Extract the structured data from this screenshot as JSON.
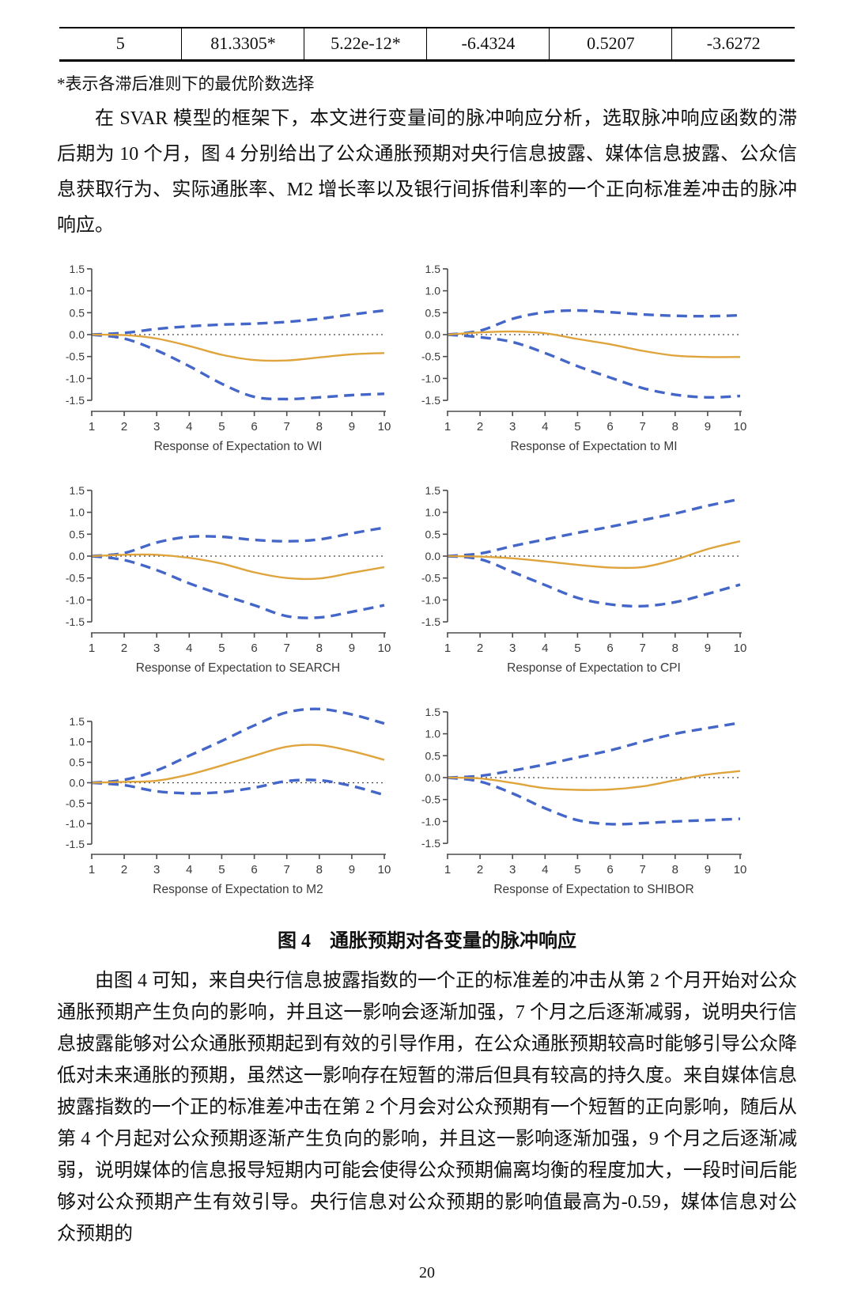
{
  "page": {
    "number": "20"
  },
  "table": {
    "row": [
      "5",
      "81.3305*",
      "5.22e-12*",
      "-6.4324",
      "0.5207",
      "-3.6272"
    ],
    "footnote": "*表示各滞后准则下的最优阶数选择"
  },
  "paragraphs": {
    "p1": "在 SVAR 模型的框架下，本文进行变量间的脉冲响应分析，选取脉冲响应函数的滞后期为 10 个月，图 4 分别给出了公众通胀预期对央行信息披露、媒体信息披露、公众信息获取行为、实际通胀率、M2 增长率以及银行间拆借利率的一个正向标准差冲击的脉冲响应。",
    "p2": "由图 4 可知，来自央行信息披露指数的一个正的标准差的冲击从第 2 个月开始对公众通胀预期产生负向的影响，并且这一影响会逐渐加强，7 个月之后逐渐减弱，说明央行信息披露能够对公众通胀预期起到有效的引导作用，在公众通胀预期较高时能够引导公众降低对未来通胀的预期，虽然这一影响存在短暂的滞后但具有较高的持久度。来自媒体信息披露指数的一个正的标准差冲击在第 2 个月会对公众预期有一个短暂的正向影响，随后从第 4 个月起对公众预期逐渐产生负向的影响，并且这一影响逐渐加强，9 个月之后逐渐减弱，说明媒体的信息报导短期内可能会使得公众预期偏离均衡的程度加大，一段时间后能够对公众预期产生有效引导。央行信息对公众预期的影响值最高为-0.59，媒体信息对公众预期的"
  },
  "figure": {
    "caption": "图 4　通胀预期对各变量的脉冲响应"
  },
  "colors": {
    "band": "#4466C8",
    "center": "#DFA43C",
    "zero_line": "#444444",
    "axis": "#4d4d4d",
    "tick_text": "#3a3a3a"
  },
  "chart_data": [
    {
      "type": "line",
      "title": "Response of Expectation to WI",
      "x": [
        1,
        2,
        3,
        4,
        5,
        6,
        7,
        8,
        9,
        10
      ],
      "xlabel": "",
      "ylabel": "",
      "yticks": [
        "1.5",
        "1.0",
        "0.5",
        "0.0",
        "-0.5",
        "-1.0",
        "-1.5"
      ],
      "ytick_values": [
        1.5,
        1.0,
        0.5,
        0.0,
        -0.5,
        -1.0,
        -1.5
      ],
      "ylim": [
        -1.75,
        1.75
      ],
      "series": [
        {
          "name": "upper-confidence-band",
          "style": "dashed",
          "values": [
            0,
            0.04,
            0.13,
            0.19,
            0.23,
            0.25,
            0.29,
            0.36,
            0.46,
            0.55
          ]
        },
        {
          "name": "lower-confidence-band",
          "style": "dashed",
          "values": [
            0,
            -0.09,
            -0.36,
            -0.72,
            -1.12,
            -1.42,
            -1.47,
            -1.43,
            -1.38,
            -1.35
          ]
        },
        {
          "name": "impulse-response",
          "style": "solid",
          "values": [
            0,
            -0.01,
            -0.09,
            -0.26,
            -0.46,
            -0.58,
            -0.59,
            -0.52,
            -0.45,
            -0.42
          ]
        }
      ]
    },
    {
      "type": "line",
      "title": "Response of Expectation to MI",
      "x": [
        1,
        2,
        3,
        4,
        5,
        6,
        7,
        8,
        9,
        10
      ],
      "xlabel": "",
      "ylabel": "",
      "yticks": [
        "1.5",
        "1.0",
        "0.5",
        "0.0",
        "-0.5",
        "-1.0",
        "-1.5"
      ],
      "ytick_values": [
        1.5,
        1.0,
        0.5,
        0.0,
        -0.5,
        -1.0,
        -1.5
      ],
      "ylim": [
        -1.75,
        1.75
      ],
      "series": [
        {
          "name": "upper-confidence-band",
          "style": "dashed",
          "values": [
            0,
            0.09,
            0.36,
            0.51,
            0.55,
            0.51,
            0.46,
            0.43,
            0.42,
            0.44
          ]
        },
        {
          "name": "lower-confidence-band",
          "style": "dashed",
          "values": [
            0,
            -0.06,
            -0.17,
            -0.42,
            -0.72,
            -0.98,
            -1.22,
            -1.37,
            -1.43,
            -1.4
          ]
        },
        {
          "name": "impulse-response",
          "style": "solid",
          "values": [
            0,
            0.05,
            0.07,
            0.03,
            -0.1,
            -0.22,
            -0.37,
            -0.48,
            -0.51,
            -0.51
          ]
        }
      ]
    },
    {
      "type": "line",
      "title": "Response of Expectation to SEARCH",
      "x": [
        1,
        2,
        3,
        4,
        5,
        6,
        7,
        8,
        9,
        10
      ],
      "xlabel": "",
      "ylabel": "",
      "yticks": [
        "1.5",
        "1.0",
        "0.5",
        "0.0",
        "-0.5",
        "-1.0",
        "-1.5"
      ],
      "ytick_values": [
        1.5,
        1.0,
        0.5,
        0.0,
        -0.5,
        -1.0,
        -1.5
      ],
      "ylim": [
        -1.75,
        1.75
      ],
      "series": [
        {
          "name": "upper-confidence-band",
          "style": "dashed",
          "values": [
            0,
            0.07,
            0.31,
            0.44,
            0.44,
            0.37,
            0.34,
            0.38,
            0.52,
            0.65
          ]
        },
        {
          "name": "lower-confidence-band",
          "style": "dashed",
          "values": [
            0,
            -0.09,
            -0.32,
            -0.62,
            -0.88,
            -1.12,
            -1.37,
            -1.4,
            -1.27,
            -1.12
          ]
        },
        {
          "name": "impulse-response",
          "style": "solid",
          "values": [
            0,
            0.03,
            0.03,
            -0.04,
            -0.17,
            -0.37,
            -0.5,
            -0.51,
            -0.38,
            -0.25
          ]
        }
      ]
    },
    {
      "type": "line",
      "title": "Response of Expectation to CPI",
      "x": [
        1,
        2,
        3,
        4,
        5,
        6,
        7,
        8,
        9,
        10
      ],
      "xlabel": "",
      "ylabel": "",
      "yticks": [
        "1.5",
        "1.0",
        "0.5",
        "0.0",
        "-0.5",
        "-1.0",
        "-1.5"
      ],
      "ytick_values": [
        1.5,
        1.0,
        0.5,
        0.0,
        -0.5,
        -1.0,
        -1.5
      ],
      "ylim": [
        -1.75,
        1.75
      ],
      "series": [
        {
          "name": "upper-confidence-band",
          "style": "dashed",
          "values": [
            0,
            0.06,
            0.23,
            0.38,
            0.53,
            0.67,
            0.82,
            0.97,
            1.15,
            1.3
          ]
        },
        {
          "name": "lower-confidence-band",
          "style": "dashed",
          "values": [
            0,
            -0.07,
            -0.36,
            -0.66,
            -0.95,
            -1.1,
            -1.14,
            -1.05,
            -0.86,
            -0.65
          ]
        },
        {
          "name": "impulse-response",
          "style": "solid",
          "values": [
            0,
            -0.01,
            -0.05,
            -0.12,
            -0.2,
            -0.26,
            -0.25,
            -0.08,
            0.16,
            0.34
          ]
        }
      ]
    },
    {
      "type": "line",
      "title": "Response of Expectation to M2",
      "x": [
        1,
        2,
        3,
        4,
        5,
        6,
        7,
        8,
        9,
        10
      ],
      "xlabel": "",
      "ylabel": "",
      "yticks": [
        "1.5",
        "1.0",
        "0.5",
        "0.0",
        "-0.5",
        "-1.0",
        "-1.5"
      ],
      "ytick_values": [
        1.5,
        1.0,
        0.5,
        0.0,
        -0.5,
        -1.0,
        -1.5
      ],
      "ylim": [
        -1.75,
        2.0
      ],
      "series": [
        {
          "name": "upper-confidence-band",
          "style": "dashed",
          "values": [
            0,
            0.07,
            0.3,
            0.66,
            1.02,
            1.4,
            1.72,
            1.8,
            1.67,
            1.45
          ]
        },
        {
          "name": "lower-confidence-band",
          "style": "dashed",
          "values": [
            0,
            -0.06,
            -0.21,
            -0.26,
            -0.23,
            -0.12,
            0.04,
            0.06,
            -0.08,
            -0.3
          ]
        },
        {
          "name": "impulse-response",
          "style": "solid",
          "values": [
            0,
            0.02,
            0.05,
            0.2,
            0.42,
            0.66,
            0.88,
            0.92,
            0.77,
            0.56
          ]
        }
      ]
    },
    {
      "type": "line",
      "title": "Response of Expectation to SHIBOR",
      "x": [
        1,
        2,
        3,
        4,
        5,
        6,
        7,
        8,
        9,
        10
      ],
      "xlabel": "",
      "ylabel": "",
      "yticks": [
        "1.5",
        "1.0",
        "0.5",
        "0.0",
        "-0.5",
        "-1.0",
        "-1.5"
      ],
      "ytick_values": [
        1.5,
        1.0,
        0.5,
        0.0,
        -0.5,
        -1.0,
        -1.5
      ],
      "ylim": [
        -1.75,
        1.75
      ],
      "series": [
        {
          "name": "upper-confidence-band",
          "style": "dashed",
          "values": [
            0,
            0.04,
            0.16,
            0.3,
            0.46,
            0.62,
            0.82,
            1.0,
            1.13,
            1.25
          ]
        },
        {
          "name": "lower-confidence-band",
          "style": "dashed",
          "values": [
            0,
            -0.09,
            -0.36,
            -0.7,
            -0.97,
            -1.06,
            -1.04,
            -1.0,
            -0.97,
            -0.94
          ]
        },
        {
          "name": "impulse-response",
          "style": "solid",
          "values": [
            0,
            -0.02,
            -0.12,
            -0.24,
            -0.28,
            -0.27,
            -0.2,
            -0.06,
            0.07,
            0.15
          ]
        }
      ]
    }
  ]
}
